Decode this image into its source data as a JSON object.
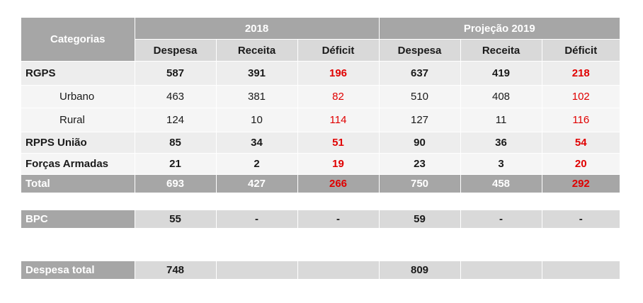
{
  "table": {
    "categories_header": "Categorias",
    "group_2018": "2018",
    "group_2019": "Projeção 2019",
    "col_despesa": "Despesa",
    "col_receita": "Receita",
    "col_deficit": "Déficit",
    "rows": [
      {
        "label": "RGPS",
        "d18": "587",
        "r18": "391",
        "f18": "196",
        "d19": "637",
        "r19": "419",
        "f19": "218"
      },
      {
        "label": "Urbano",
        "d18": "463",
        "r18": "381",
        "f18": "82",
        "d19": "510",
        "r19": "408",
        "f19": "102"
      },
      {
        "label": "Rural",
        "d18": "124",
        "r18": "10",
        "f18": "114",
        "d19": "127",
        "r19": "11",
        "f19": "116"
      },
      {
        "label": "RPPS União",
        "d18": "85",
        "r18": "34",
        "f18": "51",
        "d19": "90",
        "r19": "36",
        "f19": "54"
      },
      {
        "label": "Forças Armadas",
        "d18": "21",
        "r18": "2",
        "f18": "19",
        "d19": "23",
        "r19": "3",
        "f19": "20"
      },
      {
        "label": "Total",
        "d18": "693",
        "r18": "427",
        "f18": "266",
        "d19": "750",
        "r19": "458",
        "f19": "292"
      }
    ],
    "bpc": {
      "label": "BPC",
      "d18": "55",
      "r18": "-",
      "f18": "-",
      "d19": "59",
      "r19": "-",
      "f19": "-"
    },
    "despesa_total": {
      "label": "Despesa total",
      "d18": "748",
      "d19": "809"
    }
  },
  "colors": {
    "header_dark": "#a6a6a6",
    "header_light": "#d9d9d9",
    "deficit_red": "#e00000"
  }
}
